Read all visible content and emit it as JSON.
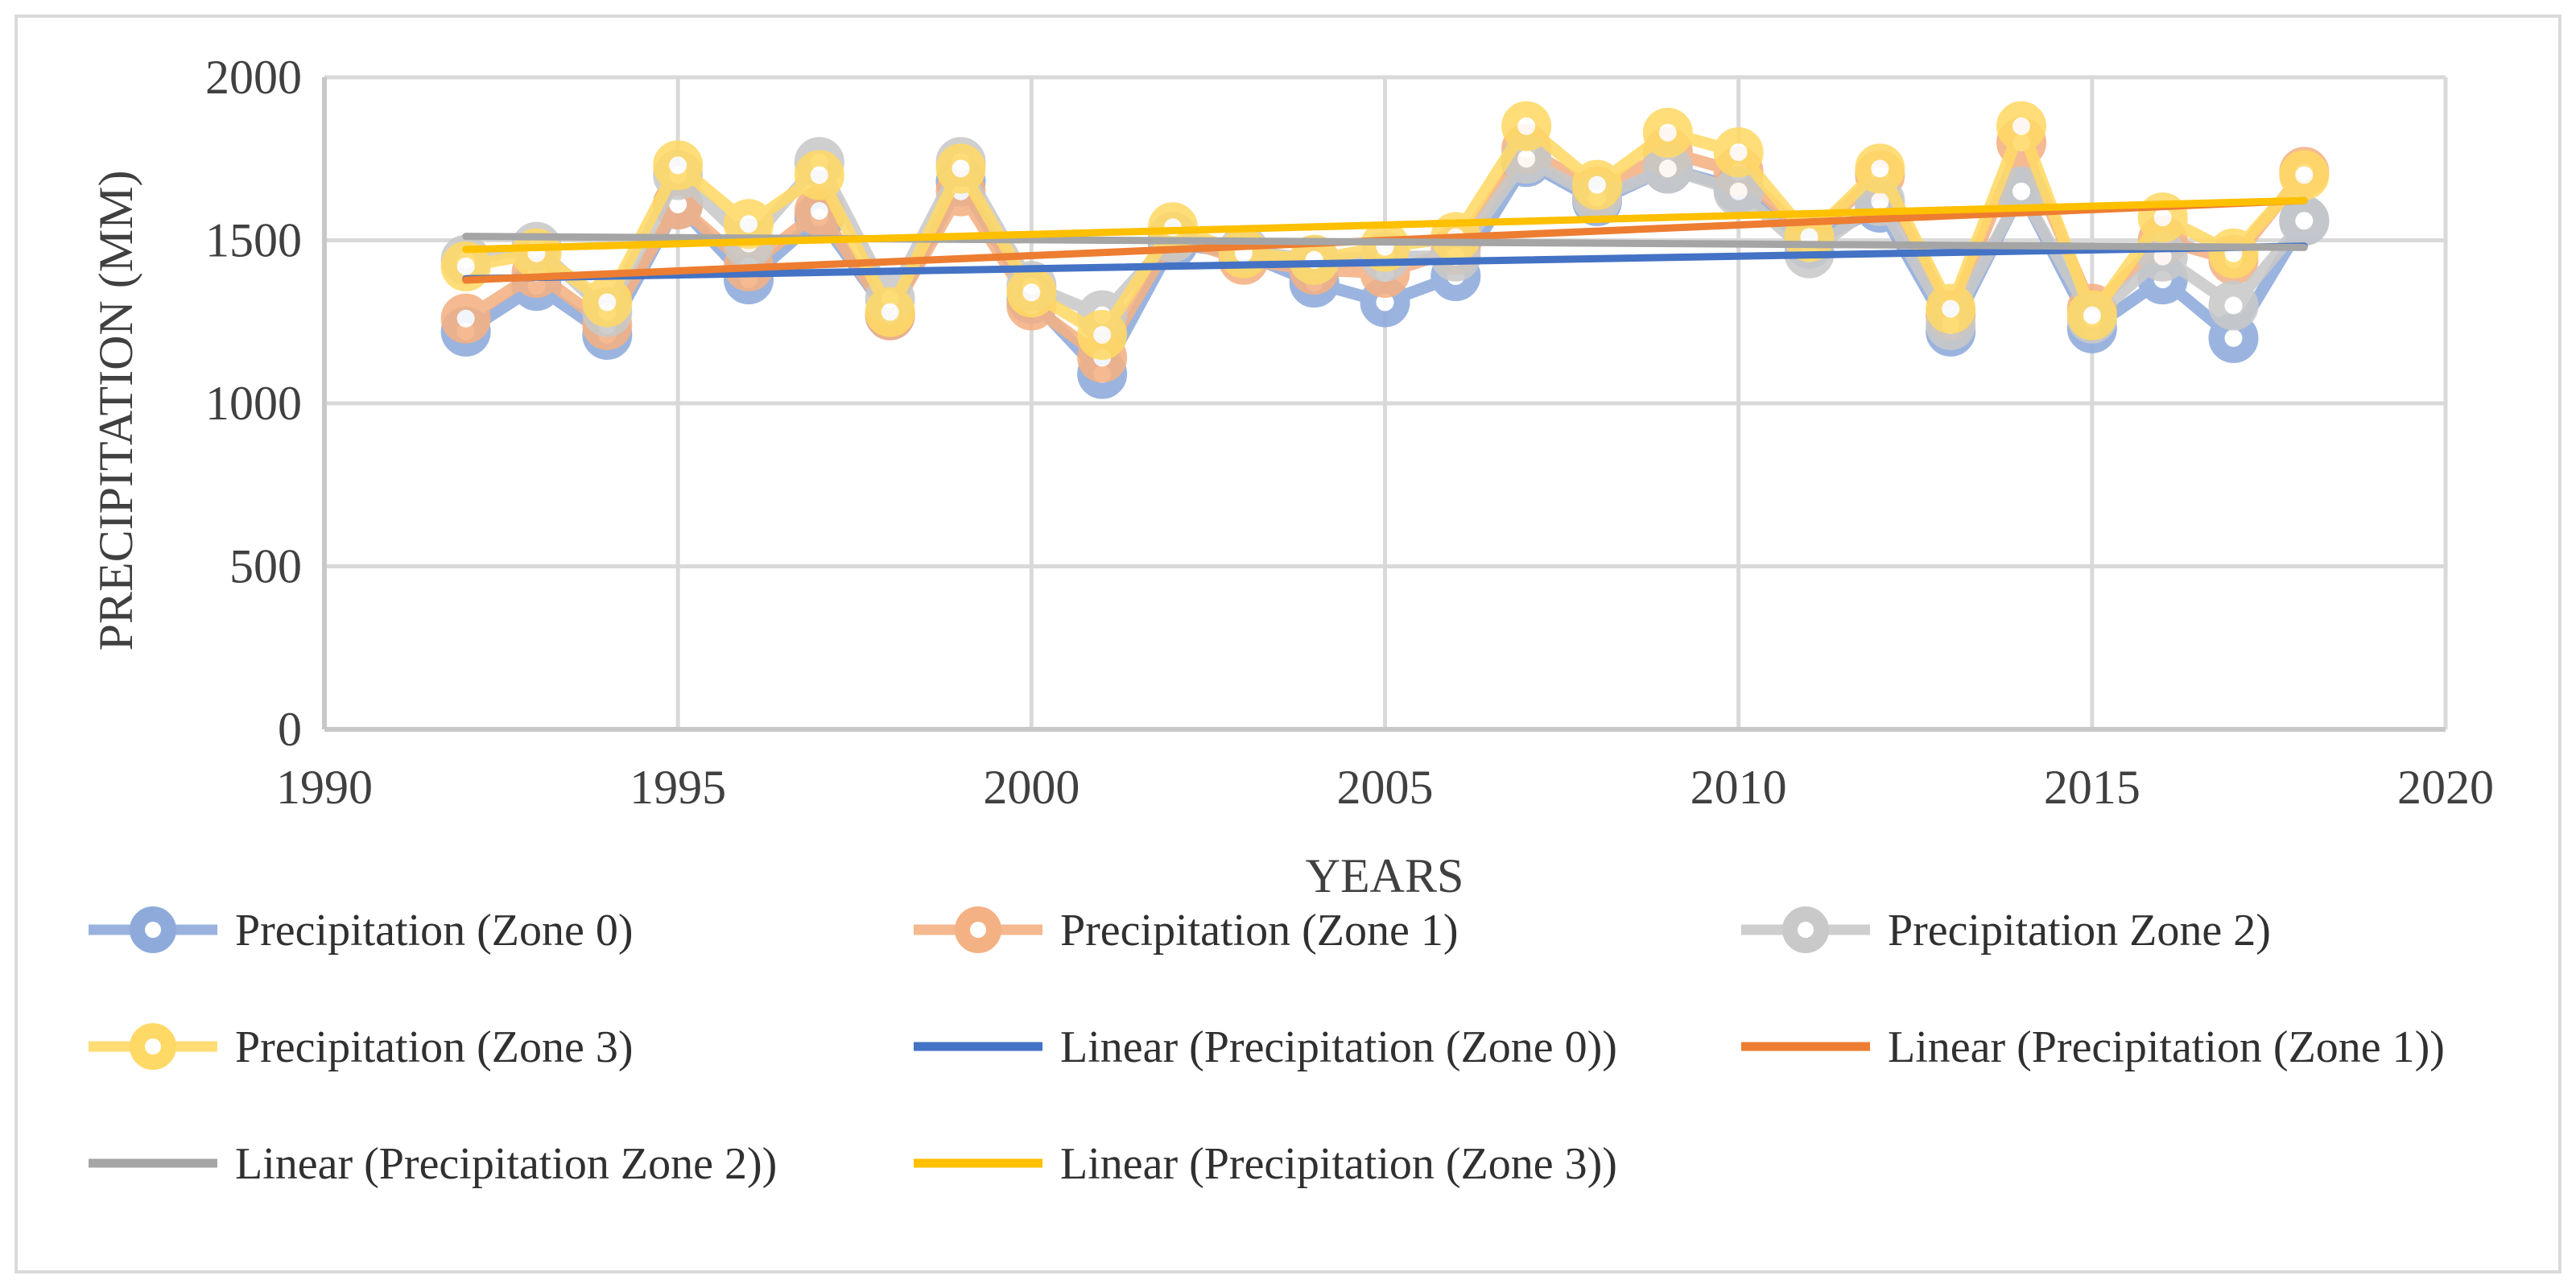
{
  "chart_data": {
    "type": "line",
    "title": "",
    "xlabel": "YEARS",
    "ylabel": "PRECIPITATION (MM)",
    "xlim": [
      1990,
      2020
    ],
    "ylim": [
      0,
      2000
    ],
    "x_ticks": [
      "1990",
      "1995",
      "2000",
      "2005",
      "2010",
      "2015",
      "2020"
    ],
    "y_ticks": [
      "0",
      "500",
      "1000",
      "1500",
      "2000"
    ],
    "grid": true,
    "legend_position": "bottom",
    "x": [
      1992,
      1993,
      1994,
      1995,
      1996,
      1997,
      1998,
      1999,
      2000,
      2001,
      2002,
      2003,
      2004,
      2005,
      2006,
      2007,
      2008,
      2009,
      2010,
      2011,
      2012,
      2013,
      2014,
      2015,
      2016,
      2017,
      2018
    ],
    "series": [
      {
        "name": "Precipitation (Zone 0)",
        "color": "#8eaadb",
        "values": [
          1220,
          1360,
          1210,
          1610,
          1380,
          1570,
          1270,
          1680,
          1320,
          1090,
          1490,
          1460,
          1370,
          1310,
          1390,
          1740,
          1620,
          1720,
          1660,
          1490,
          1600,
          1220,
          1650,
          1230,
          1380,
          1200,
          1560
        ]
      },
      {
        "name": "Precipitation (Zone 1)",
        "color": "#f4b183",
        "values": [
          1260,
          1400,
          1240,
          1610,
          1420,
          1590,
          1270,
          1650,
          1300,
          1140,
          1510,
          1440,
          1410,
          1400,
          1470,
          1780,
          1650,
          1770,
          1710,
          1510,
          1700,
          1270,
          1800,
          1290,
          1500,
          1440,
          1710
        ]
      },
      {
        "name": "Precipitation Zone 2)",
        "color": "#c9c9c9",
        "values": [
          1440,
          1480,
          1280,
          1700,
          1490,
          1740,
          1320,
          1740,
          1360,
          1270,
          1510,
          1470,
          1440,
          1450,
          1450,
          1750,
          1630,
          1720,
          1650,
          1460,
          1620,
          1240,
          1650,
          1260,
          1450,
          1300,
          1560
        ]
      },
      {
        "name": "Precipitation (Zone 3)",
        "color": "#ffd966",
        "values": [
          1420,
          1460,
          1310,
          1730,
          1550,
          1700,
          1280,
          1720,
          1340,
          1210,
          1540,
          1460,
          1440,
          1480,
          1510,
          1850,
          1670,
          1830,
          1770,
          1510,
          1720,
          1290,
          1850,
          1270,
          1570,
          1460,
          1700
        ]
      }
    ],
    "trendlines": [
      {
        "name": "Linear (Precipitation (Zone 0))",
        "color": "#4472c4",
        "x": [
          1992,
          2018
        ],
        "values": [
          1382,
          1482
        ]
      },
      {
        "name": "Linear (Precipitation (Zone 1))",
        "color": "#ed7d31",
        "x": [
          1992,
          2018
        ],
        "values": [
          1378,
          1622
        ]
      },
      {
        "name": "Linear (Precipitation Zone 2))",
        "color": "#a5a5a5",
        "x": [
          1992,
          2018
        ],
        "values": [
          1512,
          1478
        ]
      },
      {
        "name": "Linear (Precipitation (Zone 3))",
        "color": "#ffc000",
        "x": [
          1992,
          2018
        ],
        "values": [
          1472,
          1622
        ]
      }
    ],
    "legend": [
      "Precipitation (Zone 0)",
      "Precipitation (Zone 1)",
      "Precipitation Zone 2)",
      "Precipitation (Zone 3)",
      "Linear (Precipitation (Zone 0))",
      "Linear (Precipitation (Zone 1))",
      "Linear (Precipitation Zone 2))",
      "Linear (Precipitation (Zone 3))"
    ]
  }
}
